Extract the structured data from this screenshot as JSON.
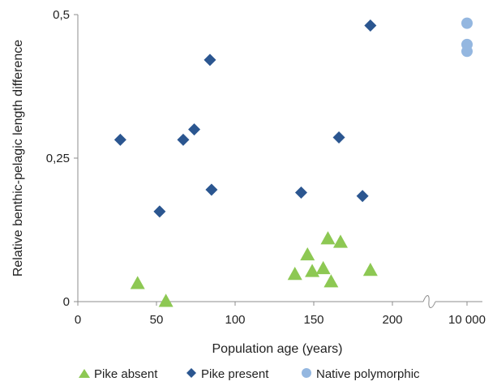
{
  "chart_data": {
    "type": "scatter",
    "title": "",
    "xlabel": "Population age (years)",
    "ylabel": "Relative benthic-pelagic length difference",
    "xlim": [
      0,
      10000
    ],
    "ylim": [
      0,
      0.5
    ],
    "x_axis_break": {
      "between": [
        200,
        10000
      ]
    },
    "x_ticks": [
      "0",
      "50",
      "100",
      "150",
      "200",
      "10 000"
    ],
    "y_ticks": [
      "0",
      "0,25",
      "0,5"
    ],
    "legend_position": "bottom",
    "grid": false,
    "series": [
      {
        "name": "Pike absent",
        "marker": "triangle",
        "color": "#8dc853",
        "points": [
          [
            38,
            0.032
          ],
          [
            56,
            0.001
          ],
          [
            138,
            0.048
          ],
          [
            146,
            0.082
          ],
          [
            149,
            0.053
          ],
          [
            156,
            0.058
          ],
          [
            159,
            0.11
          ],
          [
            161,
            0.035
          ],
          [
            167,
            0.104
          ],
          [
            186,
            0.055
          ]
        ]
      },
      {
        "name": "Pike present",
        "marker": "diamond",
        "color": "#2b5690",
        "points": [
          [
            27,
            0.282
          ],
          [
            52,
            0.157
          ],
          [
            67,
            0.282
          ],
          [
            74,
            0.3
          ],
          [
            84,
            0.421
          ],
          [
            85,
            0.195
          ],
          [
            142,
            0.19
          ],
          [
            166,
            0.286
          ],
          [
            181,
            0.184
          ],
          [
            186,
            0.481
          ]
        ]
      },
      {
        "name": "Native polymorphic",
        "marker": "circle",
        "color": "#94b7e0",
        "points": [
          [
            10000,
            0.485
          ],
          [
            10000,
            0.448
          ],
          [
            10000,
            0.436
          ]
        ]
      }
    ]
  }
}
